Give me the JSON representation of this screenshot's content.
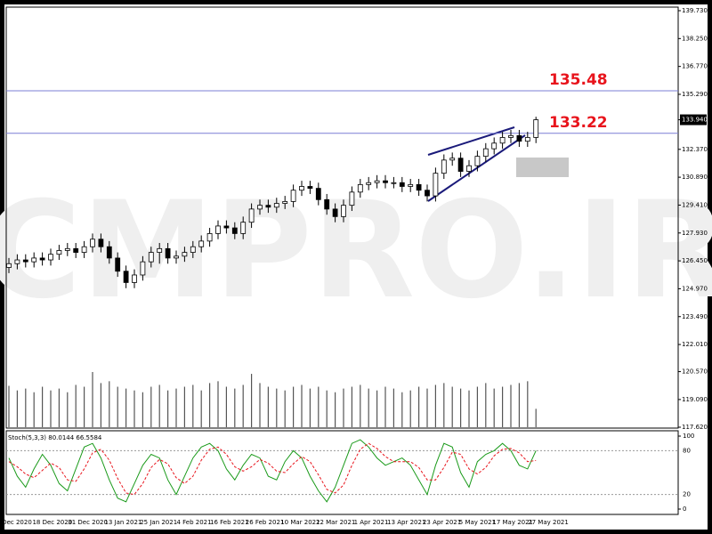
{
  "chart_data": {
    "type": "candlestick",
    "watermark": "CMPRO.IR",
    "ylim": [
      117.62,
      139.73
    ],
    "yticks": [
      {
        "value": 139.73,
        "label": "139.730"
      },
      {
        "value": 138.25,
        "label": "138.250"
      },
      {
        "value": 136.77,
        "label": "136.770"
      },
      {
        "value": 135.29,
        "label": "135.290"
      },
      {
        "value": 132.37,
        "label": "132.370"
      },
      {
        "value": 130.89,
        "label": "130.890"
      },
      {
        "value": 129.41,
        "label": "129.410"
      },
      {
        "value": 127.93,
        "label": "127.930"
      },
      {
        "value": 126.45,
        "label": "126.450"
      },
      {
        "value": 124.97,
        "label": "124.970"
      },
      {
        "value": 123.49,
        "label": "123.490"
      },
      {
        "value": 122.01,
        "label": "122.010"
      },
      {
        "value": 120.57,
        "label": "120.570"
      },
      {
        "value": 119.09,
        "label": "119.090"
      },
      {
        "value": 117.62,
        "label": "117.620"
      }
    ],
    "last_price": {
      "value": 133.94,
      "label": "133.940"
    },
    "levels": [
      {
        "value": 135.48,
        "label": "135.48",
        "color": "#7b7fd6",
        "label_color": "#e8141c"
      },
      {
        "value": 133.22,
        "label": "133.22",
        "color": "#7b7fd6",
        "label_color": "#e8141c"
      }
    ],
    "open": [
      126.1,
      126.3,
      126.5,
      126.4,
      126.6,
      126.5,
      126.8,
      127.0,
      127.1,
      126.9,
      127.2,
      127.6,
      127.2,
      126.6,
      125.9,
      125.3,
      125.7,
      126.4,
      126.9,
      127.1,
      126.6,
      126.7,
      126.9,
      127.2,
      127.5,
      127.9,
      128.3,
      128.2,
      127.9,
      128.5,
      129.2,
      129.4,
      129.3,
      129.5,
      129.6,
      130.2,
      130.4,
      130.3,
      129.7,
      129.2,
      128.8,
      129.4,
      130.1,
      130.5,
      130.6,
      130.7,
      130.6,
      130.6,
      130.4,
      130.5,
      130.2,
      129.9,
      131.1,
      131.8,
      131.9,
      131.2,
      131.5,
      132.0,
      132.4,
      132.7,
      133.0,
      133.1,
      132.8,
      133.0
    ],
    "high": [
      126.6,
      126.8,
      126.8,
      126.9,
      126.9,
      127.1,
      127.3,
      127.4,
      127.4,
      127.5,
      127.9,
      127.9,
      127.5,
      126.9,
      126.2,
      126.0,
      126.7,
      127.2,
      127.4,
      127.4,
      127.0,
      127.2,
      127.5,
      127.8,
      128.2,
      128.6,
      128.6,
      128.5,
      128.8,
      129.5,
      129.7,
      129.7,
      129.8,
      129.9,
      130.5,
      130.7,
      130.7,
      130.6,
      130.0,
      129.5,
      129.7,
      130.4,
      130.8,
      130.9,
      131.0,
      131.0,
      130.9,
      130.9,
      130.8,
      130.8,
      130.5,
      131.4,
      132.1,
      132.2,
      132.2,
      131.8,
      132.3,
      132.7,
      133.0,
      133.3,
      133.4,
      133.4,
      133.3,
      134.1
    ],
    "low": [
      125.8,
      126.0,
      126.1,
      126.1,
      126.2,
      126.2,
      126.5,
      126.7,
      126.6,
      126.6,
      126.9,
      126.9,
      126.3,
      125.6,
      125.0,
      125.0,
      125.4,
      126.1,
      126.3,
      126.3,
      126.3,
      126.4,
      126.6,
      126.9,
      127.2,
      127.6,
      127.9,
      127.6,
      127.6,
      128.2,
      128.9,
      129.0,
      129.0,
      129.2,
      129.3,
      129.9,
      130.0,
      129.4,
      128.9,
      128.5,
      128.5,
      129.1,
      129.8,
      130.2,
      130.3,
      130.3,
      130.3,
      130.1,
      130.1,
      129.9,
      129.6,
      129.6,
      130.8,
      131.5,
      130.9,
      130.9,
      131.2,
      131.7,
      132.1,
      132.4,
      132.7,
      132.5,
      132.5,
      132.7
    ],
    "close": [
      126.3,
      126.5,
      126.4,
      126.6,
      126.5,
      126.8,
      127.0,
      127.1,
      126.9,
      127.2,
      127.6,
      127.2,
      126.6,
      125.9,
      125.3,
      125.7,
      126.4,
      126.9,
      127.1,
      126.6,
      126.7,
      126.9,
      127.2,
      127.5,
      127.9,
      128.3,
      128.2,
      127.9,
      128.5,
      129.2,
      129.4,
      129.3,
      129.5,
      129.6,
      130.2,
      130.4,
      130.3,
      129.7,
      129.2,
      128.8,
      129.4,
      130.1,
      130.5,
      130.6,
      130.7,
      130.6,
      130.6,
      130.4,
      130.5,
      130.2,
      129.9,
      131.1,
      131.8,
      131.9,
      131.2,
      131.5,
      132.0,
      132.4,
      132.7,
      133.0,
      133.1,
      132.8,
      133.0,
      133.94
    ],
    "volume": [
      45,
      40,
      42,
      38,
      44,
      40,
      42,
      38,
      46,
      44,
      60,
      48,
      50,
      44,
      42,
      40,
      38,
      44,
      46,
      40,
      42,
      44,
      46,
      40,
      48,
      50,
      44,
      42,
      46,
      58,
      48,
      44,
      42,
      40,
      44,
      46,
      42,
      44,
      40,
      38,
      42,
      44,
      46,
      42,
      40,
      44,
      42,
      38,
      40,
      44,
      42,
      46,
      48,
      44,
      42,
      40,
      44,
      48,
      42,
      44,
      46,
      48,
      50,
      20
    ],
    "x_labels": [
      "Dec 2020",
      "18 Dec 2020",
      "31 Dec 2020",
      "13 Jan 2021",
      "25 Jan 2021",
      "4 Feb 2021",
      "16 Feb 2021",
      "26 Feb 2021",
      "10 Mar 2021",
      "22 Mar 2021",
      "1 Apr 2021",
      "13 Apr 2021",
      "23 Apr 2021",
      "5 May 2021",
      "17 May 2021",
      "27 May 2021"
    ],
    "stochastic": {
      "title": "Stoch(5,3,3) 80.0144 66.5584",
      "ylim": [
        0,
        100
      ],
      "yticks": [
        100,
        80,
        20,
        0
      ],
      "k_color": "#1a9a1a",
      "d_color": "#e8141c",
      "k": [
        70,
        45,
        30,
        55,
        75,
        60,
        35,
        25,
        55,
        85,
        90,
        70,
        40,
        15,
        10,
        35,
        60,
        75,
        70,
        40,
        20,
        45,
        70,
        85,
        90,
        80,
        55,
        40,
        60,
        75,
        70,
        45,
        40,
        65,
        80,
        70,
        45,
        25,
        10,
        30,
        60,
        90,
        95,
        85,
        70,
        60,
        65,
        70,
        60,
        40,
        20,
        60,
        90,
        85,
        50,
        30,
        65,
        75,
        80,
        90,
        80,
        60,
        55,
        80.0144
      ],
      "d": [
        65,
        58,
        48,
        43,
        53,
        63,
        57,
        40,
        38,
        55,
        77,
        82,
        67,
        42,
        22,
        20,
        35,
        57,
        68,
        62,
        43,
        35,
        45,
        67,
        82,
        85,
        75,
        58,
        52,
        58,
        68,
        63,
        52,
        50,
        62,
        72,
        65,
        47,
        27,
        22,
        33,
        60,
        82,
        90,
        83,
        72,
        65,
        65,
        65,
        57,
        40,
        40,
        57,
        78,
        75,
        55,
        48,
        57,
        73,
        82,
        83,
        77,
        65,
        66.5584
      ]
    }
  }
}
